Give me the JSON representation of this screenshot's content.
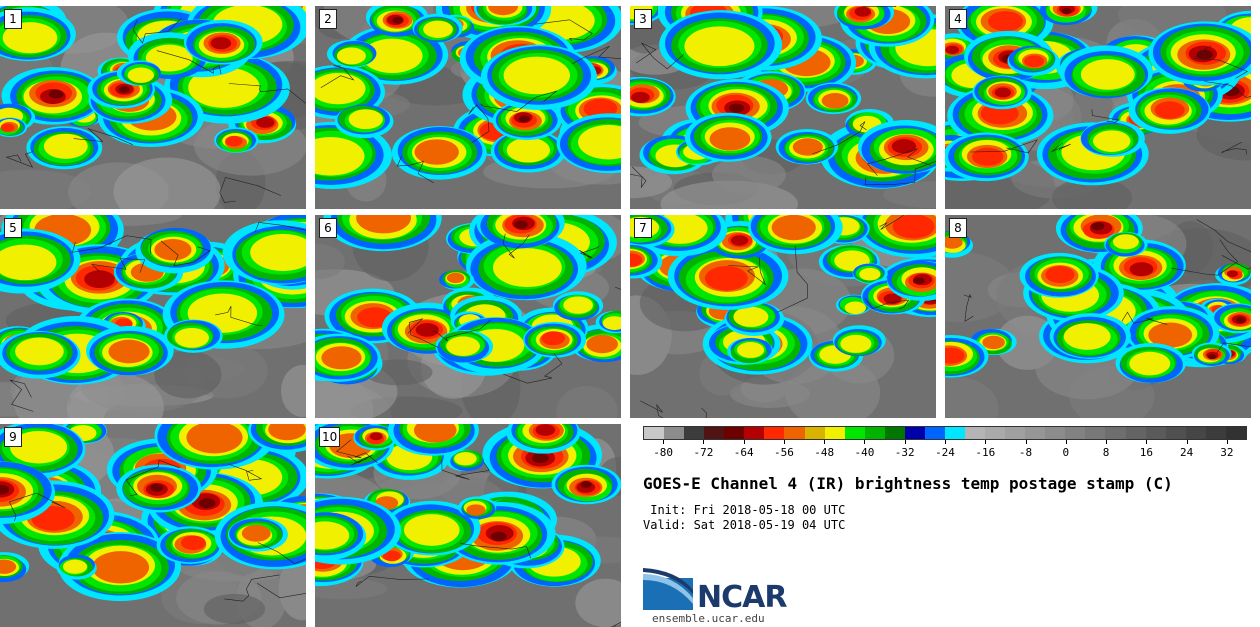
{
  "panels": [
    {
      "label": "1"
    },
    {
      "label": "2"
    },
    {
      "label": "3"
    },
    {
      "label": "4"
    },
    {
      "label": "5"
    },
    {
      "label": "6"
    },
    {
      "label": "7"
    },
    {
      "label": "8"
    },
    {
      "label": "9"
    },
    {
      "label": "10"
    }
  ],
  "colorbar": {
    "ticks": [
      "-80",
      "-72",
      "-64",
      "-56",
      "-48",
      "-40",
      "-32",
      "-24",
      "-16",
      "-8",
      "0",
      "8",
      "16",
      "24",
      "32"
    ],
    "colors": [
      "#c8c8c8",
      "#8c8c8c",
      "#3c3c3c",
      "#501414",
      "#6e0000",
      "#b40000",
      "#ff2800",
      "#f06400",
      "#d8b400",
      "#f0f000",
      "#00e600",
      "#00b400",
      "#007800",
      "#0000aa",
      "#0064ff",
      "#00e6ff",
      "#b4b4b4",
      "#aaaaaa",
      "#a0a0a0",
      "#969696",
      "#8c8c8c",
      "#828282",
      "#787878",
      "#6e6e6e",
      "#646464",
      "#5a5a5a",
      "#505050",
      "#464646",
      "#3c3c3c",
      "#323232"
    ]
  },
  "title": "GOES-E Channel 4 (IR) brightness temp postage stamp (C)",
  "init": " Init: Fri 2018-05-18 00 UTC",
  "valid": "Valid: Sat 2018-05-19 04 UTC",
  "logo": {
    "text": "NCAR",
    "url": "ensemble.ucar.edu",
    "color": "#1c3a6b"
  }
}
